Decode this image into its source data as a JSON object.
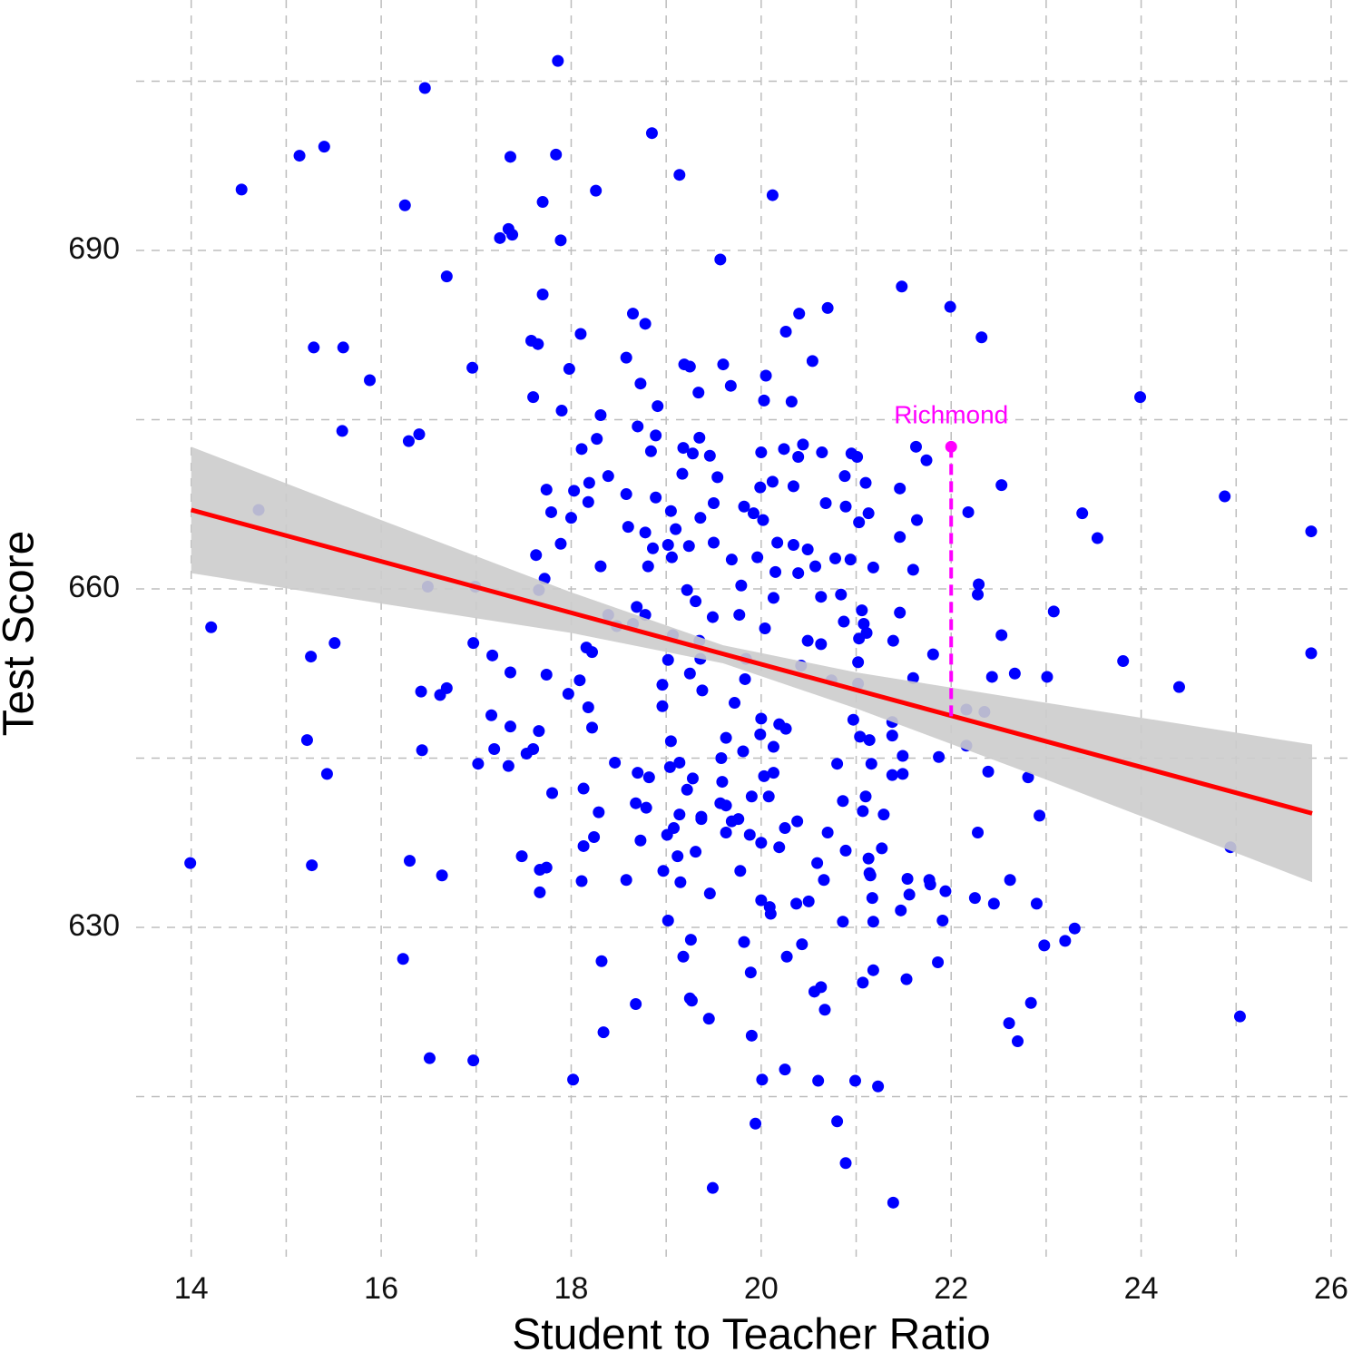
{
  "chart_data": {
    "type": "scatter",
    "x_label": "Student to Teacher Ratio",
    "y_label": "Test Score",
    "xlim": [
      13.42,
      26.22
    ],
    "ylim": [
      600.8,
      712.2
    ],
    "xticks": [
      14,
      16,
      18,
      20,
      22,
      24,
      26
    ],
    "yticks": [
      630,
      660,
      690
    ],
    "xminor": [
      15,
      17,
      19,
      21,
      23,
      25
    ],
    "yminor": [
      615,
      645,
      675,
      705
    ],
    "grid": true,
    "color": "#0000ff",
    "x": [
      17.86,
      16.46,
      18.85,
      15.4,
      15.14,
      17.36,
      17.84,
      14.53,
      19.14,
      18.26,
      20.12,
      16.25,
      17.7,
      17.34,
      17.25,
      17.38,
      17.89,
      19.57,
      16.69,
      17.7,
      21.48,
      21.99,
      18.65,
      18.78,
      20.4,
      20.7,
      18.1,
      15.29,
      15.6,
      17.58,
      17.65,
      20.26,
      22.32,
      18.58,
      16.96,
      17.98,
      19.19,
      19.25,
      19.6,
      20.05,
      20.54,
      15.88,
      18.73,
      19.68,
      17.6,
      19.34,
      18.91,
      20.03,
      20.32,
      23.99,
      17.9,
      18.31,
      15.59,
      16.4,
      16.29,
      18.7,
      19.35,
      18.27,
      18.89,
      18.11,
      18.84,
      19.18,
      19.28,
      19.46,
      20.0,
      20.24,
      20.44,
      20.64,
      20.95,
      21.01,
      21.63,
      21.74,
      20.39,
      19.17,
      19.54,
      18.39,
      18.19,
      20.12,
      20.34,
      20.88,
      21.1,
      22.53,
      21.46,
      17.74,
      18.03,
      18.58,
      18.89,
      19.99,
      24.88,
      18.18,
      19.5,
      19.82,
      20.68,
      20.89,
      14.71,
      17.79,
      19.05,
      19.92,
      21.13,
      22.18,
      23.38,
      21.64,
      21.03,
      18.0,
      19.36,
      20.02,
      18.6,
      19.1,
      18.78,
      25.79,
      17.89,
      23.54,
      21.46,
      19.02,
      19.24,
      19.5,
      20.17,
      20.34,
      18.86,
      17.63,
      19.06,
      19.69,
      19.96,
      20.49,
      20.78,
      20.94,
      21.18,
      18.31,
      18.81,
      20.57,
      21.6,
      20.15,
      20.39,
      17.72,
      19.79,
      22.29,
      16.49,
      16.99,
      17.66,
      22.28,
      19.22,
      20.13,
      20.63,
      20.84,
      19.31,
      21.06,
      23.08,
      21.46,
      18.69,
      18.78,
      18.39,
      19.49,
      19.77,
      21.08,
      20.87,
      14.21,
      18.48,
      18.65,
      20.04,
      22.53,
      19.07,
      21.03,
      21.11,
      20.49,
      15.51,
      16.97,
      18.16,
      19.35,
      20.63,
      21.39,
      15.26,
      17.17,
      18.22,
      21.81,
      19.02,
      19.36,
      19.84,
      21.02,
      23.81,
      25.79,
      20.42,
      17.36,
      17.74,
      19.25,
      19.83,
      22.43,
      22.67,
      23.01,
      18.09,
      20.74,
      21.6,
      16.69,
      16.42,
      21.02,
      24.4,
      18.96,
      19.38,
      17.97,
      16.62,
      19.72,
      18.18,
      18.96,
      22.16,
      22.35,
      17.16,
      20.0,
      20.97,
      21.38,
      17.36,
      18.22,
      17.66,
      20.19,
      20.26,
      21.04,
      19.63,
      19.99,
      21.38,
      15.22,
      19.05,
      20.13,
      21.14,
      22.16,
      16.43,
      17.19,
      17.53,
      17.6,
      19.81,
      19.58,
      21.49,
      21.87,
      17.02,
      17.34,
      18.46,
      19.14,
      19.04,
      21.16,
      20.8,
      15.43,
      18.7,
      18.82,
      20.13,
      20.03,
      21.38,
      21.49,
      22.39,
      22.81,
      19.28,
      19.59,
      18.13,
      19.22,
      17.8,
      19.9,
      20.08,
      21.1,
      20.86,
      18.68,
      18.79,
      19.57,
      19.63,
      18.29,
      19.14,
      19.37,
      19.37,
      21.07,
      21.29,
      22.93,
      19.69,
      19.76,
      20.38,
      20.25,
      19.08,
      22.28,
      19.01,
      19.63,
      19.88,
      20.7,
      18.24,
      18.73,
      20.0,
      24.94,
      18.13,
      19.31,
      20.19,
      20.89,
      21.27,
      13.99,
      16.3,
      17.48,
      15.27,
      19.12,
      20.59,
      21.13,
      17.74,
      17.67,
      16.64,
      18.97,
      19.78,
      21.14,
      21.15,
      18.58,
      19.15,
      20.66,
      21.54,
      21.77,
      21.78,
      22.62,
      18.11,
      17.67,
      19.46,
      21.56,
      21.94,
      22.25,
      22.45,
      22.9,
      20.0,
      20.09,
      20.37,
      20.5,
      21.17,
      21.47,
      20.1,
      19.02,
      20.86,
      21.18,
      21.91,
      23.3,
      19.26,
      19.82,
      20.43,
      22.98,
      23.2,
      16.23,
      19.18,
      20.27,
      18.32,
      21.86,
      19.89,
      21.18,
      21.07,
      21.53,
      20.63,
      20.56,
      19.25,
      19.27,
      18.68,
      22.84,
      20.67,
      19.45,
      25.04,
      22.61,
      18.34,
      19.9,
      22.7,
      16.51,
      16.97,
      18.02,
      20.25,
      20.01,
      20.6,
      20.99,
      21.23,
      19.94,
      20.8,
      20.89,
      19.49,
      21.39
    ],
    "values": [
      706.8,
      704.4,
      700.4,
      699.2,
      698.4,
      698.3,
      698.5,
      695.4,
      696.7,
      695.3,
      694.9,
      694.0,
      694.3,
      691.9,
      691.1,
      691.4,
      690.9,
      689.2,
      687.7,
      686.1,
      686.8,
      685.0,
      684.4,
      683.5,
      684.4,
      684.9,
      682.6,
      681.4,
      681.4,
      682.0,
      681.7,
      682.8,
      682.3,
      680.5,
      679.6,
      679.5,
      679.9,
      679.7,
      679.9,
      678.9,
      680.2,
      678.5,
      678.2,
      678.0,
      677.0,
      677.4,
      676.2,
      676.7,
      676.6,
      677.0,
      675.8,
      675.4,
      674.0,
      673.7,
      673.1,
      674.4,
      673.4,
      673.3,
      673.6,
      672.4,
      672.2,
      672.5,
      672.0,
      671.8,
      672.1,
      672.4,
      672.8,
      672.1,
      672.0,
      671.7,
      672.6,
      671.4,
      671.7,
      670.2,
      669.9,
      670.0,
      669.4,
      669.5,
      669.1,
      670.0,
      669.4,
      669.2,
      668.9,
      668.8,
      668.7,
      668.4,
      668.1,
      669.0,
      668.2,
      667.7,
      667.6,
      667.3,
      667.6,
      667.3,
      667.0,
      666.8,
      666.9,
      666.7,
      666.7,
      666.8,
      666.7,
      666.1,
      665.9,
      666.3,
      666.3,
      666.1,
      665.5,
      665.3,
      665.0,
      665.1,
      664.0,
      664.5,
      664.6,
      663.9,
      663.8,
      664.1,
      664.1,
      663.9,
      663.6,
      663.0,
      662.8,
      662.6,
      662.8,
      663.5,
      662.7,
      662.6,
      661.9,
      662.0,
      662.0,
      662.0,
      661.7,
      661.5,
      661.4,
      660.9,
      660.3,
      660.4,
      660.2,
      660.2,
      659.9,
      659.5,
      659.9,
      659.2,
      659.3,
      659.5,
      658.9,
      658.1,
      658.0,
      657.9,
      658.4,
      657.7,
      657.7,
      657.5,
      657.7,
      656.9,
      657.1,
      656.6,
      656.7,
      656.9,
      656.5,
      655.9,
      655.9,
      655.6,
      656.1,
      655.4,
      655.2,
      655.2,
      654.8,
      655.4,
      655.1,
      655.4,
      654.0,
      654.1,
      654.4,
      654.2,
      653.7,
      653.8,
      653.8,
      653.5,
      653.6,
      654.3,
      653.2,
      652.6,
      652.4,
      652.5,
      652.0,
      652.2,
      652.5,
      652.2,
      651.9,
      651.9,
      652.1,
      651.2,
      650.9,
      651.6,
      651.3,
      651.5,
      651.0,
      650.7,
      650.6,
      649.9,
      649.5,
      649.6,
      649.3,
      649.1,
      648.8,
      648.5,
      648.4,
      648.2,
      647.8,
      647.7,
      647.4,
      648.0,
      647.6,
      646.9,
      646.8,
      647.1,
      647.0,
      646.6,
      646.5,
      646.0,
      646.6,
      646.1,
      645.7,
      645.8,
      645.4,
      645.8,
      645.6,
      645.0,
      645.2,
      645.1,
      644.5,
      644.3,
      644.6,
      644.6,
      644.2,
      644.5,
      644.5,
      643.6,
      643.7,
      643.3,
      643.7,
      643.4,
      643.5,
      643.6,
      643.8,
      643.3,
      643.2,
      642.9,
      642.3,
      642.2,
      641.9,
      641.6,
      641.6,
      641.6,
      641.2,
      641.0,
      640.6,
      641.0,
      640.8,
      640.2,
      640.0,
      639.8,
      639.6,
      640.3,
      640.0,
      639.9,
      639.4,
      639.6,
      639.4,
      638.8,
      638.8,
      638.4,
      638.2,
      638.4,
      638.2,
      638.4,
      638.0,
      637.7,
      637.5,
      637.1,
      637.2,
      636.7,
      637.1,
      636.8,
      637.0,
      635.7,
      635.9,
      636.3,
      635.5,
      636.3,
      635.7,
      636.1,
      635.3,
      635.1,
      634.6,
      635.0,
      635.0,
      634.8,
      634.6,
      634.2,
      634.0,
      634.2,
      634.3,
      634.2,
      633.8,
      634.2,
      634.1,
      633.1,
      633.0,
      632.9,
      633.2,
      632.6,
      632.1,
      632.1,
      632.4,
      631.8,
      632.1,
      632.3,
      632.6,
      631.5,
      631.2,
      630.6,
      630.5,
      630.5,
      630.6,
      629.9,
      628.9,
      628.7,
      628.5,
      628.4,
      628.8,
      627.2,
      627.4,
      627.4,
      627.0,
      626.9,
      626.0,
      626.2,
      625.1,
      625.4,
      624.7,
      624.3,
      623.7,
      623.5,
      623.2,
      623.3,
      622.7,
      621.9,
      622.1,
      621.5,
      620.7,
      620.4,
      619.9,
      618.4,
      618.2,
      616.5,
      617.4,
      616.5,
      616.4,
      616.4,
      615.9,
      612.6,
      612.8,
      609.1,
      606.9,
      605.6
    ],
    "fit": {
      "x": [
        14,
        25.8
      ],
      "y": [
        667.0,
        640.1
      ],
      "color": "#ff0000"
    },
    "band": {
      "x": [
        14,
        16,
        18,
        19.6,
        21,
        23,
        25.8
      ],
      "lower": [
        661.4,
        658.7,
        656.1,
        653.4,
        649.4,
        643.1,
        634.0
      ],
      "upper": [
        672.6,
        666.1,
        659.7,
        655.0,
        652.6,
        649.9,
        646.2
      ],
      "color": "#cccccc"
    },
    "annotation": {
      "label": "Richmond",
      "x": 22,
      "y": 672.6,
      "y_end": 648.7,
      "color": "#ff00ff"
    }
  }
}
